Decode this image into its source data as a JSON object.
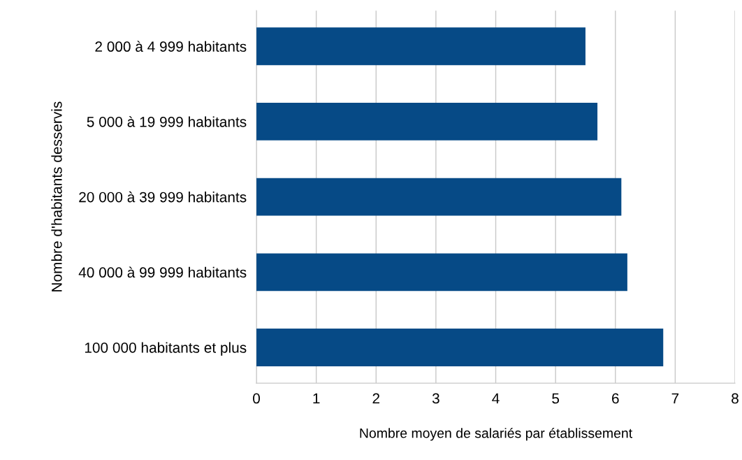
{
  "chart_data": {
    "type": "bar",
    "orientation": "horizontal",
    "categories": [
      "2 000 à 4 999 habitants",
      "5 000 à 19 999 habitants",
      "20 000 à 39 999 habitants",
      "40 000 à 99 999 habitants",
      "100 000 habitants et plus"
    ],
    "values": [
      5.5,
      5.7,
      6.1,
      6.2,
      6.8
    ],
    "color": "#064a86",
    "xlim": [
      0,
      8
    ],
    "xticks": [
      0,
      1,
      2,
      3,
      4,
      5,
      6,
      7,
      8
    ],
    "grid": "x",
    "xlabel": "Nombre moyen de salariés par établissement",
    "ylabel": "Nombre d'habitants desservis"
  }
}
